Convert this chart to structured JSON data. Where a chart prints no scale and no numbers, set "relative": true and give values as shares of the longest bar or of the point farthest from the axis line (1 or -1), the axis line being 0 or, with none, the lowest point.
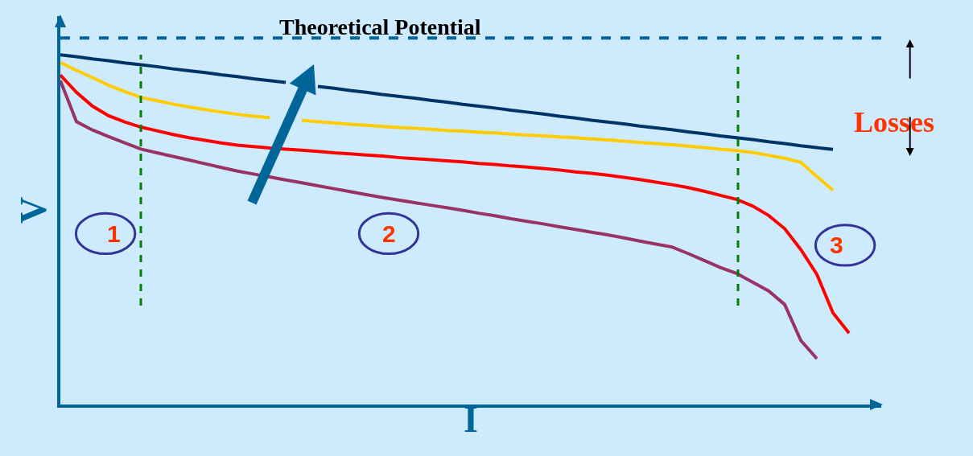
{
  "chart_data": {
    "type": "line",
    "relative": true,
    "xlabel": "I",
    "ylabel": "V",
    "tick_labels": false,
    "grid": false,
    "legend": false,
    "marker": "none",
    "categories": [
      null,
      null,
      null,
      null,
      null,
      null,
      null,
      null,
      null,
      null,
      null,
      null,
      null,
      null,
      null,
      null,
      null,
      null,
      null,
      null,
      null,
      null,
      null,
      null,
      null,
      null,
      null,
      null,
      null,
      null,
      null,
      null,
      null,
      null,
      null,
      null,
      null,
      null,
      null,
      null,
      null,
      null,
      null,
      null,
      null,
      null,
      null,
      null,
      null,
      null,
      null,
      null
    ],
    "series": [
      {
        "name": "Theoretical Potential",
        "color": "#006699",
        "line_style": "dashed",
        "values": [
          1,
          1,
          1,
          1,
          1,
          1,
          1,
          1,
          1,
          1,
          1,
          1,
          1,
          1,
          1,
          1,
          1,
          1,
          1,
          1,
          1,
          1,
          1,
          1,
          1,
          1,
          1,
          1,
          1,
          1,
          1,
          1,
          1,
          1,
          1,
          1,
          1,
          1,
          1,
          1,
          1,
          1,
          1,
          1,
          1,
          1,
          1,
          1,
          1,
          1,
          1,
          1
        ]
      },
      {
        "color": "#003366",
        "values": [
          0.954,
          0.949,
          0.943,
          0.938,
          0.932,
          0.927,
          0.922,
          0.916,
          0.911,
          0.906,
          0.9,
          0.895,
          0.889,
          0.884,
          0.879,
          null,
          0.868,
          0.863,
          0.857,
          0.852,
          0.846,
          0.841,
          0.836,
          0.83,
          0.825,
          0.819,
          0.814,
          0.809,
          0.803,
          0.798,
          0.793,
          0.787,
          0.782,
          0.776,
          0.771,
          0.766,
          0.76,
          0.755,
          0.75,
          0.744,
          0.739,
          0.733,
          0.728,
          0.723,
          0.717,
          0.712,
          0.706,
          0.701,
          0.696,
          null,
          null,
          null
        ]
      },
      {
        "color": "#ffcc00",
        "values": [
          0.933,
          0.912,
          0.892,
          0.871,
          0.854,
          0.838,
          0.829,
          0.82,
          0.812,
          0.805,
          0.798,
          0.792,
          0.787,
          0.783,
          null,
          0.775,
          0.772,
          0.768,
          0.765,
          0.762,
          0.759,
          0.756,
          0.754,
          0.751,
          0.748,
          0.746,
          0.743,
          0.741,
          0.738,
          0.735,
          0.733,
          0.73,
          0.728,
          0.725,
          0.722,
          0.719,
          0.715,
          0.712,
          0.709,
          0.705,
          0.701,
          0.697,
          0.693,
          0.688,
          0.68,
          0.672,
          0.661,
          0.622,
          0.585,
          null,
          null,
          null
        ]
      },
      {
        "color": "#ff0000",
        "values": [
          0.899,
          0.852,
          0.814,
          0.788,
          0.771,
          0.757,
          0.747,
          0.737,
          0.728,
          0.721,
          0.714,
          0.708,
          0.704,
          0.7,
          0.697,
          0.694,
          0.691,
          0.687,
          0.684,
          0.681,
          0.678,
          0.674,
          0.671,
          0.668,
          0.665,
          0.662,
          0.658,
          0.655,
          0.651,
          0.648,
          0.644,
          0.64,
          0.635,
          0.631,
          0.626,
          0.62,
          0.614,
          0.607,
          0.6,
          0.592,
          0.582,
          0.571,
          0.56,
          0.542,
          0.516,
          0.48,
          0.423,
          0.355,
          0.25,
          0.195,
          null,
          null
        ]
      },
      {
        "color": "#993366",
        "values": [
          0.884,
          0.772,
          0.749,
          0.731,
          0.714,
          0.697,
          0.687,
          0.677,
          0.667,
          0.657,
          0.647,
          0.637,
          0.629,
          0.621,
          0.613,
          0.605,
          0.597,
          0.589,
          0.581,
          0.573,
          0.565,
          0.558,
          0.551,
          0.544,
          0.537,
          0.53,
          0.522,
          0.515,
          0.507,
          0.5,
          0.493,
          0.485,
          0.478,
          0.47,
          0.463,
          0.455,
          0.446,
          0.438,
          0.43,
          0.412,
          0.393,
          0.374,
          0.358,
          0.334,
          0.31,
          0.273,
          0.175,
          0.125,
          null,
          null,
          null,
          null
        ]
      }
    ],
    "annotations": [
      "1",
      "2",
      "3",
      "Losses"
    ]
  }
}
